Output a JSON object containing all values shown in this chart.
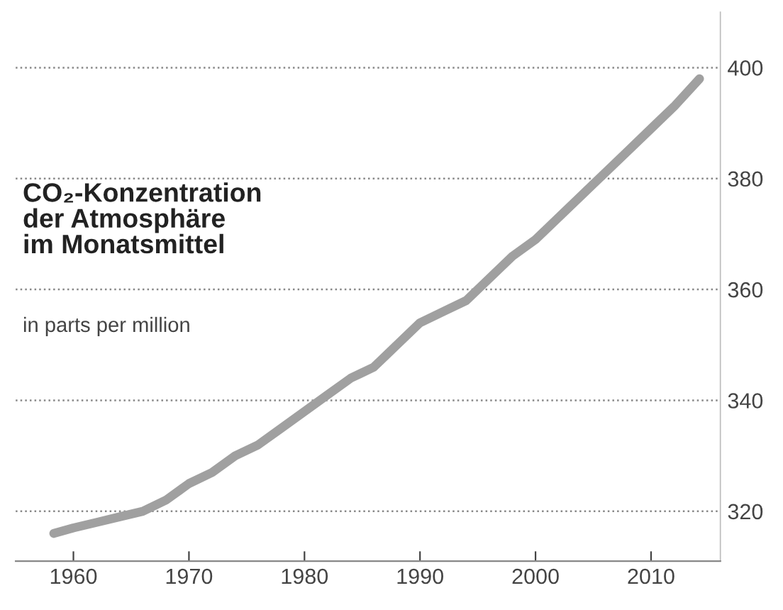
{
  "chart_data": {
    "type": "line",
    "title": "CO₂-Konzentration\nder Atmosphäre\nim Monatsmittel",
    "subtitle": "in parts per million",
    "x": [
      1958.3,
      1960,
      1962,
      1964,
      1966,
      1968,
      1970,
      1972,
      1974,
      1976,
      1978,
      1980,
      1982,
      1984,
      1986,
      1988,
      1990,
      1992,
      1994,
      1996,
      1998,
      2000,
      2002,
      2004,
      2006,
      2008,
      2010,
      2012,
      2014.2
    ],
    "series": [
      {
        "color": "#a0a0a0",
        "values": [
          316,
          317,
          318,
          319,
          320,
          322,
          325,
          327,
          330,
          332,
          335,
          338,
          341,
          344,
          346,
          350,
          354,
          356,
          358,
          362,
          366,
          369,
          373,
          377,
          381,
          385,
          389,
          393,
          398
        ]
      }
    ],
    "xlim": [
      1955,
      2016
    ],
    "ylim": [
      311,
      410
    ],
    "xticks": [
      1960,
      1970,
      1980,
      1990,
      2000,
      2010
    ],
    "yticks": [
      320,
      340,
      360,
      380,
      400
    ],
    "grid": "y",
    "legend": false,
    "marker": "none",
    "line_style": "solid"
  }
}
